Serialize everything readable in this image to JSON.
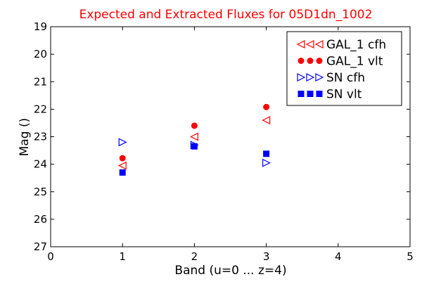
{
  "chart_data": {
    "type": "scatter",
    "title": "Expected and Extracted Fluxes for 05D1dn_1002",
    "title_color": "#ff0000",
    "xlabel": "Band (u=0 ... z=4)",
    "ylabel": "Mag ()",
    "xlim": [
      0,
      5
    ],
    "ylim": [
      27,
      19
    ],
    "y_inverted": true,
    "x_ticks": [
      "0",
      "1",
      "2",
      "3",
      "4",
      "5"
    ],
    "y_ticks": [
      "19",
      "20",
      "21",
      "22",
      "23",
      "24",
      "25",
      "26",
      "27"
    ],
    "grid": false,
    "legend_position": "top-right",
    "series": [
      {
        "name": "GAL_1 cfh",
        "marker": "triangle-left",
        "color": "#ff0000",
        "filled": false,
        "x": [
          1,
          2,
          3
        ],
        "y": [
          24.05,
          23.0,
          22.4
        ]
      },
      {
        "name": "GAL_1 vlt",
        "marker": "circle",
        "color": "#ff0000",
        "filled": true,
        "x": [
          1,
          2,
          3
        ],
        "y": [
          23.78,
          22.6,
          21.92
        ]
      },
      {
        "name": "SN cfh",
        "marker": "triangle-right",
        "color": "#0000ff",
        "filled": false,
        "x": [
          1,
          2,
          3
        ],
        "y": [
          23.2,
          23.3,
          23.95
        ]
      },
      {
        "name": "SN vlt",
        "marker": "square",
        "color": "#0000ff",
        "filled": true,
        "x": [
          1,
          2,
          3
        ],
        "y": [
          24.3,
          23.35,
          23.62
        ]
      }
    ]
  }
}
